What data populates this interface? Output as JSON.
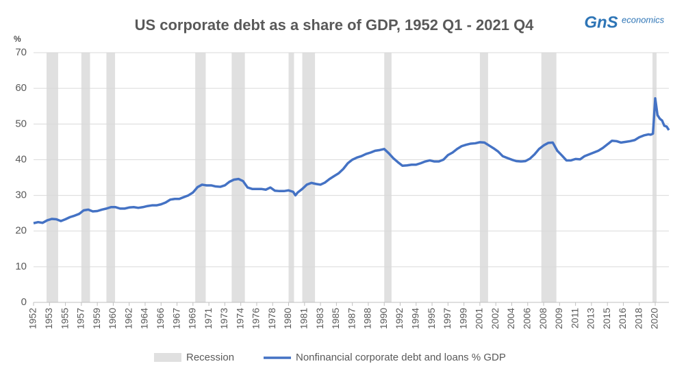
{
  "chart_data": {
    "type": "line",
    "title": "US corporate debt as a share of GDP, 1952 Q1 - 2021 Q4",
    "logo": {
      "mark": "GnS",
      "text": "economics"
    },
    "y_label": "%",
    "xlim": [
      1952,
      2021.75
    ],
    "xticks": [
      {
        "value": 1952,
        "label": "1952"
      },
      {
        "value": 1953.75,
        "label": "1953"
      },
      {
        "value": 1955.5,
        "label": "1955"
      },
      {
        "value": 1957.25,
        "label": "1957"
      },
      {
        "value": 1959,
        "label": "1959"
      },
      {
        "value": 1960.75,
        "label": "1960"
      },
      {
        "value": 1962.5,
        "label": "1962"
      },
      {
        "value": 1964.25,
        "label": "1964"
      },
      {
        "value": 1966,
        "label": "1966"
      },
      {
        "value": 1967.75,
        "label": "1967"
      },
      {
        "value": 1969.5,
        "label": "1969"
      },
      {
        "value": 1971.25,
        "label": "1971"
      },
      {
        "value": 1973,
        "label": "1973"
      },
      {
        "value": 1974.75,
        "label": "1974"
      },
      {
        "value": 1976.5,
        "label": "1976"
      },
      {
        "value": 1978.25,
        "label": "1978"
      },
      {
        "value": 1980,
        "label": "1980"
      },
      {
        "value": 1981.75,
        "label": "1981"
      },
      {
        "value": 1983.5,
        "label": "1983"
      },
      {
        "value": 1985.25,
        "label": "1985"
      },
      {
        "value": 1987,
        "label": "1987"
      },
      {
        "value": 1988.75,
        "label": "1988"
      },
      {
        "value": 1990.5,
        "label": "1990"
      },
      {
        "value": 1992.25,
        "label": "1992"
      },
      {
        "value": 1994,
        "label": "1994"
      },
      {
        "value": 1995.75,
        "label": "1995"
      },
      {
        "value": 1997.5,
        "label": "1997"
      },
      {
        "value": 1999.25,
        "label": "1999"
      },
      {
        "value": 2001,
        "label": "2001"
      },
      {
        "value": 2002.75,
        "label": "2002"
      },
      {
        "value": 2004.5,
        "label": "2004"
      },
      {
        "value": 2006.25,
        "label": "2006"
      },
      {
        "value": 2008,
        "label": "2008"
      },
      {
        "value": 2009.75,
        "label": "2009"
      },
      {
        "value": 2011.5,
        "label": "2011"
      },
      {
        "value": 2013.25,
        "label": "2013"
      },
      {
        "value": 2015,
        "label": "2015"
      },
      {
        "value": 2016.75,
        "label": "2016"
      },
      {
        "value": 2018.5,
        "label": "2018"
      },
      {
        "value": 2020.25,
        "label": "2020"
      }
    ],
    "ylim": [
      0,
      70
    ],
    "yticks": [
      0,
      10,
      20,
      30,
      40,
      50,
      60,
      70
    ],
    "grid": true,
    "recessions": {
      "name": "Recession",
      "color": "#e0e0e0",
      "periods": [
        [
          1953.43,
          1954.7
        ],
        [
          1957.25,
          1958.2
        ],
        [
          1960.0,
          1960.95
        ],
        [
          1969.75,
          1970.9
        ],
        [
          1973.75,
          1975.2
        ],
        [
          1980.0,
          1980.6
        ],
        [
          1981.5,
          1982.9
        ],
        [
          1990.5,
          1991.3
        ],
        [
          2001.0,
          2001.9
        ],
        [
          2007.75,
          2009.4
        ],
        [
          2019.95,
          2020.4
        ]
      ]
    },
    "x": [
      1952.0,
      1952.5,
      1953.0,
      1953.5,
      1954.0,
      1954.5,
      1955.0,
      1955.5,
      1956.0,
      1956.5,
      1957.0,
      1957.5,
      1958.0,
      1958.5,
      1959.0,
      1959.5,
      1960.0,
      1960.5,
      1961.0,
      1961.5,
      1962.0,
      1962.5,
      1963.0,
      1963.5,
      1964.0,
      1964.5,
      1965.0,
      1965.5,
      1966.0,
      1966.5,
      1967.0,
      1967.5,
      1968.0,
      1968.5,
      1969.0,
      1969.5,
      1970.0,
      1970.5,
      1971.0,
      1971.5,
      1972.0,
      1972.5,
      1973.0,
      1973.5,
      1974.0,
      1974.5,
      1975.0,
      1975.5,
      1976.0,
      1976.5,
      1977.0,
      1977.5,
      1978.0,
      1978.5,
      1979.0,
      1979.5,
      1980.0,
      1980.5,
      1980.75,
      1981.0,
      1981.5,
      1982.0,
      1982.5,
      1983.0,
      1983.5,
      1984.0,
      1984.5,
      1985.0,
      1985.5,
      1986.0,
      1986.5,
      1987.0,
      1987.5,
      1988.0,
      1988.5,
      1989.0,
      1989.5,
      1990.0,
      1990.5,
      1991.0,
      1991.5,
      1992.0,
      1992.5,
      1993.0,
      1993.5,
      1994.0,
      1994.5,
      1995.0,
      1995.5,
      1996.0,
      1996.5,
      1997.0,
      1997.5,
      1998.0,
      1998.5,
      1999.0,
      1999.5,
      2000.0,
      2000.5,
      2001.0,
      2001.5,
      2002.0,
      2002.5,
      2003.0,
      2003.5,
      2004.0,
      2004.5,
      2005.0,
      2005.5,
      2006.0,
      2006.5,
      2007.0,
      2007.5,
      2008.0,
      2008.5,
      2009.0,
      2009.5,
      2010.0,
      2010.5,
      2011.0,
      2011.5,
      2012.0,
      2012.5,
      2013.0,
      2013.5,
      2014.0,
      2014.5,
      2015.0,
      2015.5,
      2016.0,
      2016.5,
      2017.0,
      2017.5,
      2018.0,
      2018.5,
      2019.0,
      2019.5,
      2019.75,
      2020.0,
      2020.25,
      2020.5,
      2020.75,
      2021.0,
      2021.25,
      2021.5,
      2021.75
    ],
    "series": [
      {
        "name": "Nonfinancial corporate debt and loans % GDP",
        "color": "#4472c4",
        "values": [
          22.2,
          22.5,
          22.3,
          23.0,
          23.4,
          23.3,
          22.8,
          23.3,
          23.9,
          24.3,
          24.8,
          25.8,
          26.0,
          25.5,
          25.6,
          26.0,
          26.3,
          26.7,
          26.7,
          26.3,
          26.3,
          26.6,
          26.7,
          26.5,
          26.7,
          27.0,
          27.2,
          27.2,
          27.5,
          28.0,
          28.8,
          29.0,
          29.0,
          29.5,
          30.0,
          30.8,
          32.3,
          33.0,
          32.8,
          32.8,
          32.5,
          32.4,
          32.8,
          33.8,
          34.4,
          34.6,
          34.0,
          32.2,
          31.8,
          31.8,
          31.8,
          31.6,
          32.2,
          31.3,
          31.2,
          31.2,
          31.4,
          31.0,
          30.0,
          30.8,
          31.8,
          33.0,
          33.5,
          33.2,
          33.0,
          33.6,
          34.6,
          35.4,
          36.2,
          37.4,
          39.0,
          40.0,
          40.6,
          41.0,
          41.6,
          42.0,
          42.5,
          42.7,
          43.0,
          41.8,
          40.4,
          39.3,
          38.3,
          38.4,
          38.6,
          38.6,
          39.0,
          39.5,
          39.8,
          39.5,
          39.5,
          40.0,
          41.3,
          42.0,
          43.0,
          43.8,
          44.2,
          44.5,
          44.6,
          44.9,
          44.8,
          44.0,
          43.2,
          42.3,
          41.0,
          40.5,
          40.0,
          39.6,
          39.5,
          39.6,
          40.3,
          41.5,
          43.0,
          44.0,
          44.7,
          44.8,
          42.5,
          41.2,
          39.8,
          39.8,
          40.2,
          40.1,
          41.0,
          41.5,
          42.0,
          42.5,
          43.3,
          44.3,
          45.3,
          45.2,
          44.8,
          45.0,
          45.2,
          45.5,
          46.3,
          46.8,
          47.1,
          47.0,
          47.3,
          57.2,
          52.5,
          51.5,
          51.0,
          49.5,
          49.3,
          48.3
        ]
      }
    ]
  }
}
